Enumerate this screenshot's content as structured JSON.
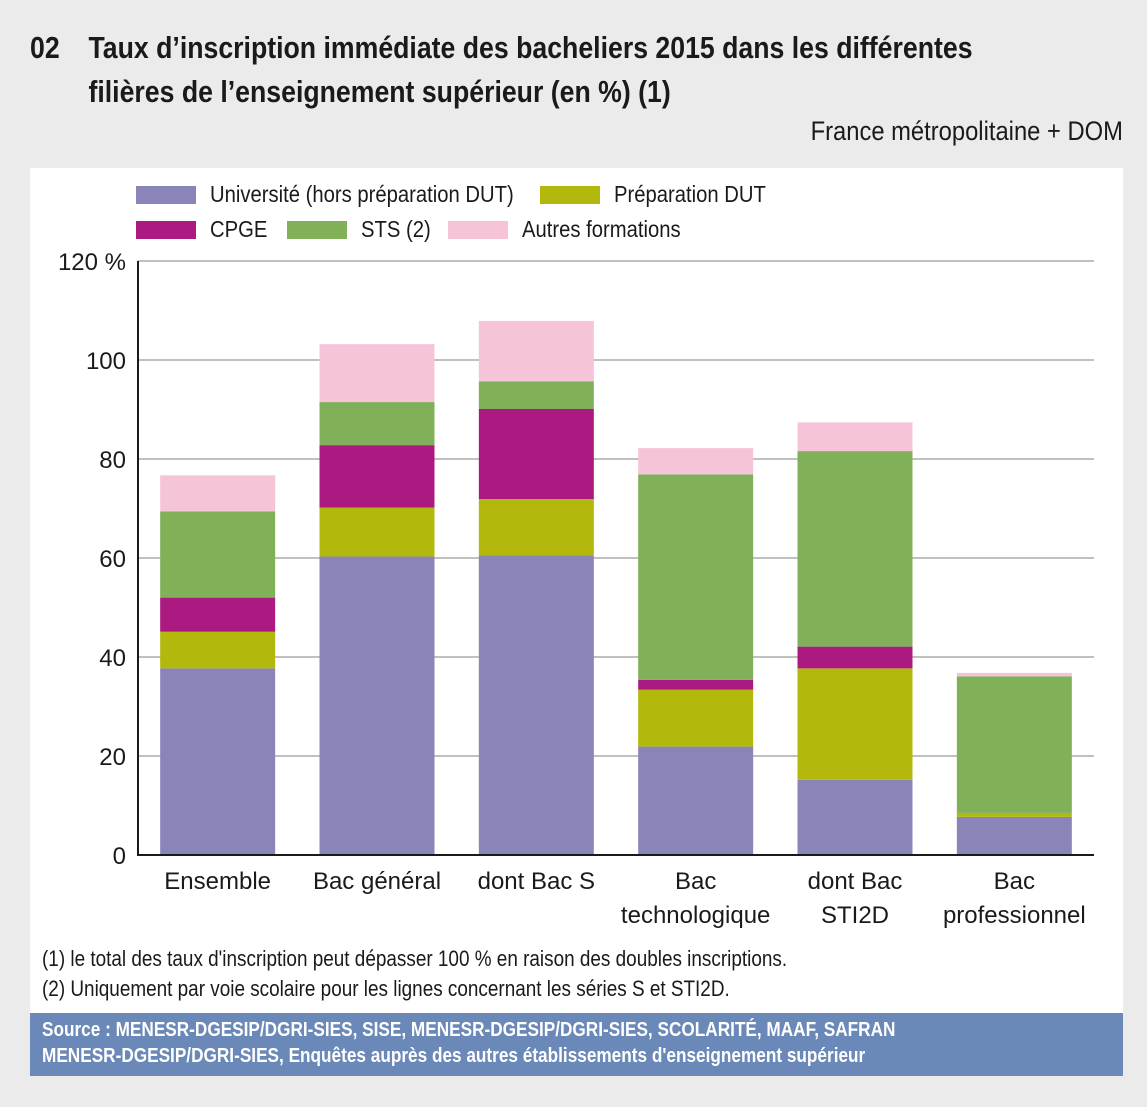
{
  "header": {
    "number": "02",
    "title_line1": "Taux d’inscription immédiate des bacheliers 2015 dans les différentes",
    "title_line2": "filières de l’enseignement supérieur (en %) (1)",
    "subtitle": "France métropolitaine + DOM"
  },
  "chart_data": {
    "type": "bar",
    "stacked": true,
    "title": "Taux d’inscription immédiate des bacheliers 2015 dans les différentes filières de l’enseignement supérieur (en %) (1)",
    "xlabel": "",
    "ylabel": "%",
    "ylim": [
      0,
      120
    ],
    "yticks": [
      0,
      20,
      40,
      60,
      80,
      100,
      120
    ],
    "ytick_labels": [
      "0",
      "20",
      "40",
      "60",
      "80",
      "100",
      "120 %"
    ],
    "grid": true,
    "legend_position": "top-left",
    "categories": [
      "Ensemble",
      "Bac général",
      "dont Bac S",
      "Bac technologique",
      "dont Bac STI2D",
      "Bac professionnel"
    ],
    "category_lines": [
      [
        "Ensemble"
      ],
      [
        "Bac général"
      ],
      [
        "dont Bac S"
      ],
      [
        "Bac",
        "technologique"
      ],
      [
        "dont Bac",
        "STI2D"
      ],
      [
        "Bac",
        "professionnel"
      ]
    ],
    "series": [
      {
        "name": "Université (hors préparation DUT)",
        "color": "#8985b8",
        "values": [
          37.7,
          60.3,
          60.5,
          21.9,
          15.2,
          7.7
        ]
      },
      {
        "name": "Préparation DUT",
        "color": "#b3b80d",
        "values": [
          7.4,
          9.9,
          11.4,
          11.5,
          22.5,
          0.8
        ]
      },
      {
        "name": "CPGE",
        "color": "#ab1a80",
        "values": [
          6.9,
          12.6,
          18.2,
          2.0,
          4.4,
          0.0
        ]
      },
      {
        "name": "STS (2)",
        "color": "#80b058",
        "values": [
          17.4,
          8.7,
          5.6,
          41.5,
          39.5,
          27.6
        ]
      },
      {
        "name": "Autres formations",
        "color": "#f5c4d8",
        "values": [
          7.3,
          11.7,
          12.2,
          5.3,
          5.8,
          0.7
        ]
      }
    ]
  },
  "legend": [
    {
      "label": "Université (hors préparation DUT)",
      "color": "#8985b8"
    },
    {
      "label": "Préparation DUT",
      "color": "#b3b80d"
    },
    {
      "label": "CPGE",
      "color": "#ab1a80"
    },
    {
      "label": "STS (2)",
      "color": "#80b058"
    },
    {
      "label": "Autres formations",
      "color": "#f5c4d8"
    }
  ],
  "footnotes": [
    "(1) le total des taux d'inscription peut dépasser 100 % en raison des doubles inscriptions.",
    "(2) Uniquement par voie scolaire pour les lignes concernant les séries S et STI2D."
  ],
  "source": {
    "line1": "Source : MENESR-DGESIP/DGRI-SIES, SISE, MENESR-DGESIP/DGRI-SIES, SCOLARITÉ, MAAF, SAFRAN",
    "line2": "MENESR-DGESIP/DGRI-SIES, Enquêtes auprès des autres établissements d'enseignement supérieur"
  },
  "colors": {
    "background": "#ebebeb",
    "panel": "#ffffff",
    "source_band": "#6a89b8",
    "gridline": "#9a9a9a"
  }
}
